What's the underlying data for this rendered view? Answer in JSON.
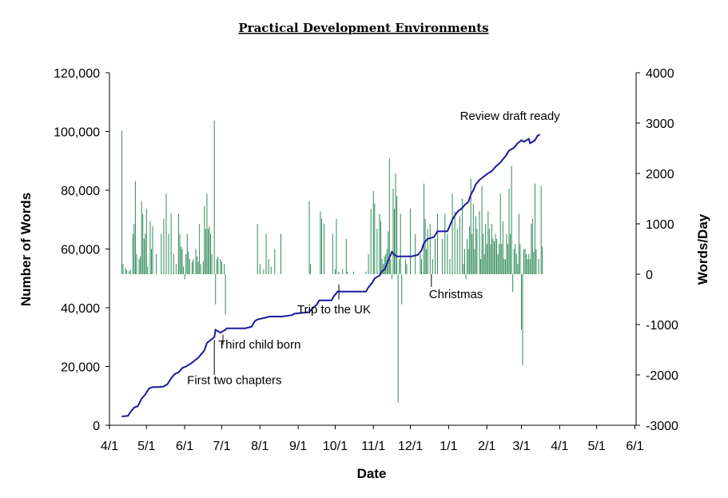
{
  "chart_data": {
    "type": "line+bar",
    "title": "Practical Development Environments",
    "xlabel": "Date",
    "ylabel_left": "Number of Words",
    "ylabel_right": "Words/Day",
    "x_ticks": [
      "4/1",
      "5/1",
      "6/1",
      "7/1",
      "8/1",
      "9/1",
      "10/1",
      "11/1",
      "12/1",
      "1/1",
      "2/1",
      "3/1",
      "4/1",
      "5/1",
      "6/1"
    ],
    "y_left_ticks": [
      "0",
      "20,000",
      "40,000",
      "60,000",
      "80,000",
      "100,000",
      "120,000"
    ],
    "y_right_ticks": [
      "-3000",
      "-2000",
      "-1000",
      "0",
      "1000",
      "2000",
      "3000",
      "4000"
    ],
    "ylim_left": [
      0,
      120000
    ],
    "ylim_right": [
      -3000,
      4000
    ],
    "xlim_days": [
      0,
      427
    ],
    "line_color": "#1a1a9c",
    "bar_color": "#2e8b57",
    "series": [
      {
        "name": "",
        "kind": "line",
        "axis": "left",
        "points": [
          [
            10,
            3000
          ],
          [
            15,
            3200
          ],
          [
            17,
            4500
          ],
          [
            20,
            6000
          ],
          [
            23,
            6500
          ],
          [
            26,
            9000
          ],
          [
            29,
            10500
          ],
          [
            32,
            12500
          ],
          [
            35,
            13000
          ],
          [
            40,
            13000
          ],
          [
            44,
            13200
          ],
          [
            47,
            14000
          ],
          [
            50,
            16000
          ],
          [
            53,
            17500
          ],
          [
            56,
            18000
          ],
          [
            59,
            19500
          ],
          [
            62,
            20000
          ],
          [
            66,
            21000
          ],
          [
            69,
            22000
          ],
          [
            72,
            23000
          ],
          [
            74,
            24000
          ],
          [
            77,
            25500
          ],
          [
            79,
            28000
          ],
          [
            82,
            29000
          ],
          [
            85,
            30000
          ],
          [
            86,
            32500
          ],
          [
            88,
            32000
          ],
          [
            90,
            31500
          ],
          [
            92,
            32000
          ],
          [
            94,
            32500
          ],
          [
            95,
            33000
          ],
          [
            100,
            33000
          ],
          [
            105,
            33000
          ],
          [
            110,
            33000
          ],
          [
            115,
            33500
          ],
          [
            118,
            35500
          ],
          [
            120,
            36000
          ],
          [
            125,
            36500
          ],
          [
            130,
            37000
          ],
          [
            140,
            37000
          ],
          [
            148,
            37500
          ],
          [
            150,
            38000
          ],
          [
            162,
            38500
          ],
          [
            165,
            40000
          ],
          [
            168,
            41000
          ],
          [
            170,
            42500
          ],
          [
            180,
            42500
          ],
          [
            182,
            44000
          ],
          [
            185,
            45500
          ],
          [
            198,
            45500
          ],
          [
            208,
            45500
          ],
          [
            210,
            47000
          ],
          [
            213,
            48500
          ],
          [
            215,
            50000
          ],
          [
            219,
            51000
          ],
          [
            221,
            52500
          ],
          [
            223,
            53000
          ],
          [
            225,
            55000
          ],
          [
            227,
            57000
          ],
          [
            229,
            59000
          ],
          [
            231,
            58000
          ],
          [
            233,
            57500
          ],
          [
            240,
            57500
          ],
          [
            245,
            57500
          ],
          [
            250,
            58000
          ],
          [
            253,
            59500
          ],
          [
            255,
            62000
          ],
          [
            258,
            63500
          ],
          [
            263,
            64000
          ],
          [
            266,
            66000
          ],
          [
            274,
            66000
          ],
          [
            276,
            68000
          ],
          [
            278,
            70000
          ],
          [
            281,
            72000
          ],
          [
            283,
            73000
          ],
          [
            286,
            74000
          ],
          [
            288,
            75000
          ],
          [
            291,
            76000
          ],
          [
            293,
            78500
          ],
          [
            295,
            80000
          ],
          [
            297,
            82000
          ],
          [
            300,
            83500
          ],
          [
            303,
            84500
          ],
          [
            306,
            85500
          ],
          [
            310,
            86500
          ],
          [
            313,
            88000
          ],
          [
            317,
            89500
          ],
          [
            321,
            91500
          ],
          [
            324,
            93500
          ],
          [
            328,
            94500
          ],
          [
            331,
            96000
          ],
          [
            334,
            97000
          ],
          [
            336,
            96500
          ],
          [
            338,
            97000
          ],
          [
            340,
            97500
          ],
          [
            341,
            96000
          ],
          [
            343,
            96500
          ],
          [
            345,
            97000
          ],
          [
            347,
            98500
          ],
          [
            349,
            99000
          ]
        ]
      },
      {
        "name": "",
        "kind": "bar",
        "axis": "right",
        "points": [
          [
            10,
            2850
          ],
          [
            11,
            200
          ],
          [
            13,
            120
          ],
          [
            14,
            80
          ],
          [
            16,
            60
          ],
          [
            17,
            90
          ],
          [
            19,
            800
          ],
          [
            20,
            1000
          ],
          [
            21,
            1850
          ],
          [
            22,
            400
          ],
          [
            24,
            300
          ],
          [
            25,
            350
          ],
          [
            26,
            1450
          ],
          [
            27,
            1200
          ],
          [
            28,
            700
          ],
          [
            29,
            800
          ],
          [
            30,
            1300
          ],
          [
            31,
            150
          ],
          [
            33,
            1050
          ],
          [
            34,
            500
          ],
          [
            35,
            950
          ],
          [
            38,
            400
          ],
          [
            42,
            800
          ],
          [
            44,
            1100
          ],
          [
            46,
            1600
          ],
          [
            48,
            800
          ],
          [
            50,
            1200
          ],
          [
            52,
            400
          ],
          [
            54,
            200
          ],
          [
            56,
            1200
          ],
          [
            57,
            800
          ],
          [
            58,
            550
          ],
          [
            59,
            500
          ],
          [
            60,
            150
          ],
          [
            61,
            -100
          ],
          [
            62,
            400
          ],
          [
            63,
            800
          ],
          [
            64,
            450
          ],
          [
            65,
            300
          ],
          [
            67,
            250
          ],
          [
            68,
            300
          ],
          [
            70,
            500
          ],
          [
            71,
            350
          ],
          [
            72,
            250
          ],
          [
            73,
            1000
          ],
          [
            74,
            200
          ],
          [
            76,
            250
          ],
          [
            77,
            1350
          ],
          [
            78,
            900
          ],
          [
            79,
            1600
          ],
          [
            80,
            900
          ],
          [
            81,
            950
          ],
          [
            82,
            800
          ],
          [
            83,
            400
          ],
          [
            85,
            3050
          ],
          [
            86,
            -600
          ],
          [
            87,
            300
          ],
          [
            88,
            350
          ],
          [
            90,
            300
          ],
          [
            91,
            250
          ],
          [
            93,
            200
          ],
          [
            94,
            -800
          ],
          [
            120,
            1000
          ],
          [
            122,
            200
          ],
          [
            125,
            100
          ],
          [
            127,
            800
          ],
          [
            129,
            300
          ],
          [
            131,
            150
          ],
          [
            134,
            500
          ],
          [
            139,
            800
          ],
          [
            162,
            1450
          ],
          [
            163,
            200
          ],
          [
            171,
            1250
          ],
          [
            172,
            1100
          ],
          [
            174,
            1000
          ],
          [
            181,
            800
          ],
          [
            183,
            100
          ],
          [
            184,
            1100
          ],
          [
            186,
            50
          ],
          [
            189,
            100
          ],
          [
            192,
            700
          ],
          [
            193,
            50
          ],
          [
            198,
            50
          ],
          [
            208,
            50
          ],
          [
            210,
            400
          ],
          [
            212,
            1300
          ],
          [
            214,
            1650
          ],
          [
            215,
            1400
          ],
          [
            217,
            900
          ],
          [
            219,
            1200
          ],
          [
            220,
            1050
          ],
          [
            221,
            300
          ],
          [
            222,
            200
          ],
          [
            223,
            350
          ],
          [
            224,
            400
          ],
          [
            225,
            500
          ],
          [
            226,
            850
          ],
          [
            227,
            2300
          ],
          [
            228,
            300
          ],
          [
            229,
            -100
          ],
          [
            230,
            1700
          ],
          [
            231,
            1300
          ],
          [
            232,
            2000
          ],
          [
            233,
            1550
          ],
          [
            234,
            -2550
          ],
          [
            235,
            300
          ],
          [
            236,
            1200
          ],
          [
            237,
            -600
          ],
          [
            240,
            300
          ],
          [
            241,
            200
          ],
          [
            244,
            1300
          ],
          [
            248,
            800
          ],
          [
            252,
            400
          ],
          [
            253,
            300
          ],
          [
            255,
            1800
          ],
          [
            256,
            1100
          ],
          [
            257,
            500
          ],
          [
            258,
            900
          ],
          [
            260,
            1000
          ],
          [
            262,
            300
          ],
          [
            264,
            700
          ],
          [
            266,
            1200
          ],
          [
            270,
            700
          ],
          [
            272,
            1200
          ],
          [
            274,
            800
          ],
          [
            276,
            300
          ],
          [
            278,
            1600
          ],
          [
            280,
            1250
          ],
          [
            282,
            900
          ],
          [
            284,
            1150
          ],
          [
            286,
            1500
          ],
          [
            287,
            200
          ],
          [
            288,
            500
          ],
          [
            289,
            -100
          ],
          [
            290,
            700
          ],
          [
            291,
            500
          ],
          [
            292,
            950
          ],
          [
            293,
            1900
          ],
          [
            294,
            800
          ],
          [
            295,
            1400
          ],
          [
            296,
            500
          ],
          [
            297,
            1150
          ],
          [
            298,
            900
          ],
          [
            300,
            1250
          ],
          [
            301,
            300
          ],
          [
            302,
            1750
          ],
          [
            303,
            800
          ],
          [
            304,
            400
          ],
          [
            305,
            1000
          ],
          [
            306,
            600
          ],
          [
            307,
            1250
          ],
          [
            308,
            900
          ],
          [
            309,
            600
          ],
          [
            310,
            1000
          ],
          [
            311,
            700
          ],
          [
            312,
            650
          ],
          [
            313,
            800
          ],
          [
            314,
            700
          ],
          [
            315,
            400
          ],
          [
            316,
            600
          ],
          [
            317,
            1600
          ],
          [
            318,
            600
          ],
          [
            319,
            1050
          ],
          [
            320,
            300
          ],
          [
            321,
            300
          ],
          [
            322,
            800
          ],
          [
            323,
            600
          ],
          [
            324,
            1700
          ],
          [
            325,
            800
          ],
          [
            326,
            2150
          ],
          [
            327,
            -350
          ],
          [
            328,
            500
          ],
          [
            329,
            600
          ],
          [
            330,
            400
          ],
          [
            331,
            200
          ],
          [
            332,
            1200
          ],
          [
            333,
            600
          ],
          [
            334,
            -1100
          ],
          [
            335,
            -1800
          ],
          [
            336,
            500
          ],
          [
            337,
            500
          ],
          [
            338,
            400
          ],
          [
            339,
            300
          ],
          [
            340,
            400
          ],
          [
            341,
            300
          ],
          [
            342,
            1000
          ],
          [
            343,
            1100
          ],
          [
            344,
            450
          ],
          [
            345,
            1800
          ],
          [
            346,
            500
          ],
          [
            348,
            300
          ],
          [
            350,
            1750
          ],
          [
            351,
            550
          ]
        ]
      }
    ],
    "annotations": [
      {
        "text": "First two chapters",
        "x": 85,
        "y_right": -2100
      },
      {
        "text": "Third child born",
        "x": 92,
        "y_right": -1400
      },
      {
        "text": "Trip to the UK",
        "x": 186,
        "y_right": -600
      },
      {
        "text": "Christmas",
        "x": 261,
        "y_right": -100
      },
      {
        "text": "Review draft ready",
        "x": 349,
        "y_right": 3050
      }
    ]
  }
}
